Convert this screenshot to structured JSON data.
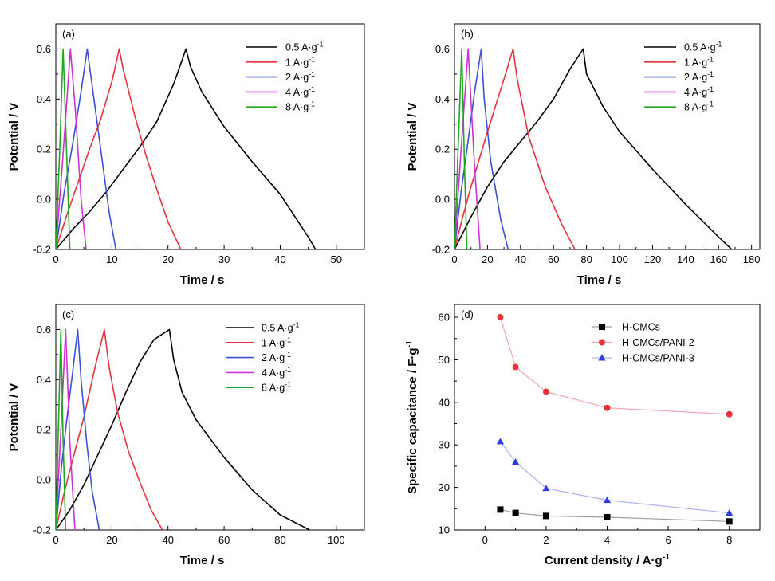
{
  "chart_data": [
    {
      "type": "line",
      "panel_label": "(a)",
      "xlabel": "Time / s",
      "ylabel": "Potential / V",
      "xlim": [
        0,
        55
      ],
      "ylim": [
        -0.2,
        0.7
      ],
      "x_ticks": [
        "0",
        "10",
        "20",
        "30",
        "40",
        "50"
      ],
      "y_ticks": [
        "-0.2",
        "0.0",
        "0.2",
        "0.4",
        "0.6"
      ],
      "legend": [
        "0.5 A·g⁻¹",
        "1 A·g⁻¹",
        "2 A·g⁻¹",
        "4 A·g⁻¹",
        "8 A·g⁻¹"
      ],
      "legend_position": "top-right",
      "series": [
        {
          "name": "0.5 A·g⁻¹",
          "color": "#000000",
          "x": [
            0,
            3,
            6,
            9,
            12,
            15,
            18,
            21,
            23.2,
            24,
            26,
            30,
            35,
            40,
            45,
            46.3
          ],
          "y": [
            -0.2,
            -0.12,
            -0.05,
            0.03,
            0.12,
            0.21,
            0.31,
            0.46,
            0.6,
            0.53,
            0.43,
            0.29,
            0.15,
            0.02,
            -0.15,
            -0.2
          ]
        },
        {
          "name": "1 A·g⁻¹",
          "color": "#e8323c",
          "x": [
            0,
            2,
            4,
            6,
            8,
            10,
            11.3,
            12,
            14,
            16,
            18,
            20,
            22.3
          ],
          "y": [
            -0.2,
            -0.06,
            0.07,
            0.2,
            0.32,
            0.47,
            0.6,
            0.52,
            0.34,
            0.18,
            0.04,
            -0.09,
            -0.2
          ]
        },
        {
          "name": "2 A·g⁻¹",
          "color": "#3c4fd8",
          "x": [
            0,
            1.5,
            3,
            4.5,
            5.6,
            6.5,
            8,
            9.5,
            10.7
          ],
          "y": [
            -0.2,
            0.03,
            0.22,
            0.43,
            0.6,
            0.45,
            0.2,
            -0.05,
            -0.2
          ]
        },
        {
          "name": "4 A·g⁻¹",
          "color": "#d030d8",
          "x": [
            0,
            1.2,
            2.6,
            3.5,
            4.5,
            5.4
          ],
          "y": [
            -0.2,
            0.15,
            0.6,
            0.35,
            0.0,
            -0.2
          ]
        },
        {
          "name": "8 A·g⁻¹",
          "color": "#22a51f",
          "x": [
            0,
            0.7,
            1.3,
            1.9,
            2.5
          ],
          "y": [
            -0.2,
            0.2,
            0.6,
            0.2,
            -0.2
          ]
        }
      ]
    },
    {
      "type": "line",
      "panel_label": "(b)",
      "xlabel": "Time / s",
      "ylabel": "Potential / V",
      "xlim": [
        0,
        185
      ],
      "ylim": [
        -0.2,
        0.7
      ],
      "x_ticks": [
        "0",
        "20",
        "40",
        "60",
        "80",
        "100",
        "120",
        "140",
        "160",
        "180"
      ],
      "y_ticks": [
        "-0.2",
        "0.0",
        "0.2",
        "0.4",
        "0.6"
      ],
      "legend": [
        "0.5 A·g⁻¹",
        "1 A·g⁻¹",
        "2 A·g⁻¹",
        "4 A·g⁻¹",
        "8 A·g⁻¹"
      ],
      "legend_position": "top-right",
      "series": [
        {
          "name": "0.5 A·g⁻¹",
          "color": "#000000",
          "x": [
            0,
            10,
            20,
            30,
            40,
            50,
            60,
            70,
            78,
            80,
            90,
            100,
            120,
            140,
            160,
            168
          ],
          "y": [
            -0.2,
            -0.07,
            0.05,
            0.15,
            0.23,
            0.31,
            0.4,
            0.52,
            0.6,
            0.5,
            0.37,
            0.27,
            0.12,
            -0.02,
            -0.15,
            -0.2
          ]
        },
        {
          "name": "1 A·g⁻¹",
          "color": "#e8323c",
          "x": [
            0,
            5,
            10,
            20,
            30,
            35.5,
            38,
            45,
            55,
            65,
            73
          ],
          "y": [
            -0.2,
            -0.07,
            0.05,
            0.27,
            0.48,
            0.6,
            0.48,
            0.25,
            0.05,
            -0.1,
            -0.2
          ]
        },
        {
          "name": "2 A·g⁻¹",
          "color": "#3c4fd8",
          "x": [
            0,
            4,
            8,
            12,
            16.2,
            18,
            22,
            28,
            32.5
          ],
          "y": [
            -0.2,
            0.03,
            0.22,
            0.42,
            0.6,
            0.4,
            0.15,
            -0.08,
            -0.2
          ]
        },
        {
          "name": "4 A·g⁻¹",
          "color": "#d030d8",
          "x": [
            0,
            4,
            8.3,
            12,
            15.5
          ],
          "y": [
            -0.2,
            0.2,
            0.6,
            0.15,
            -0.2
          ]
        },
        {
          "name": "8 A·g⁻¹",
          "color": "#22a51f",
          "x": [
            0,
            2.2,
            4.4,
            6,
            7.5
          ],
          "y": [
            -0.2,
            0.2,
            0.6,
            0.15,
            -0.2
          ]
        }
      ]
    },
    {
      "type": "line",
      "panel_label": "(c)",
      "xlabel": "Time / s",
      "ylabel": "Potential / V",
      "xlim": [
        0,
        110
      ],
      "ylim": [
        -0.2,
        0.7
      ],
      "x_ticks": [
        "0",
        "20",
        "40",
        "60",
        "80",
        "100"
      ],
      "y_ticks": [
        "-0.2",
        "0.0",
        "0.2",
        "0.4",
        "0.6"
      ],
      "legend": [
        "0.5 A·g⁻¹",
        "1 A·g⁻¹",
        "2 A·g⁻¹",
        "4 A·g⁻¹",
        "8 A·g⁻¹"
      ],
      "legend_position": "top-right",
      "series": [
        {
          "name": "0.5 A·g⁻¹",
          "color": "#000000",
          "x": [
            0,
            5,
            10,
            15,
            20,
            25,
            30,
            35,
            40.5,
            42,
            45,
            50,
            60,
            70,
            80,
            90.5
          ],
          "y": [
            -0.2,
            -0.12,
            -0.02,
            0.1,
            0.22,
            0.35,
            0.47,
            0.56,
            0.6,
            0.48,
            0.35,
            0.24,
            0.09,
            -0.04,
            -0.14,
            -0.2
          ]
        },
        {
          "name": "1 A·g⁻¹",
          "color": "#e8323c",
          "x": [
            0,
            3,
            6,
            10,
            14,
            17.3,
            19,
            22,
            26,
            30,
            34,
            38
          ],
          "y": [
            -0.2,
            -0.05,
            0.08,
            0.25,
            0.45,
            0.6,
            0.45,
            0.27,
            0.11,
            -0.01,
            -0.12,
            -0.2
          ]
        },
        {
          "name": "2 A·g⁻¹",
          "color": "#3c4fd8",
          "x": [
            0,
            2,
            4,
            6,
            7.8,
            9,
            11,
            13,
            15.5
          ],
          "y": [
            -0.2,
            0.05,
            0.25,
            0.43,
            0.6,
            0.4,
            0.15,
            -0.05,
            -0.2
          ]
        },
        {
          "name": "4 A·g⁻¹",
          "color": "#d030d8",
          "x": [
            0,
            1.8,
            3.5,
            5,
            6.8
          ],
          "y": [
            -0.2,
            0.2,
            0.6,
            0.15,
            -0.2
          ]
        },
        {
          "name": "8 A·g⁻¹",
          "color": "#22a51f",
          "x": [
            0,
            0.9,
            1.8,
            2.6,
            3.5
          ],
          "y": [
            -0.2,
            0.2,
            0.6,
            0.15,
            -0.2
          ]
        }
      ]
    },
    {
      "type": "line",
      "panel_label": "(d)",
      "xlabel": "Current density / A·g⁻¹",
      "ylabel": "Specific capacitance / F·g⁻¹",
      "xlim": [
        -1,
        9
      ],
      "ylim": [
        10,
        63
      ],
      "x_ticks": [
        "0",
        "2",
        "4",
        "6",
        "8"
      ],
      "y_ticks": [
        "10",
        "20",
        "30",
        "40",
        "50",
        "60"
      ],
      "legend": [
        "H-CMCs",
        "H-CMCs/PANI-2",
        "H-CMCs/PANI-3"
      ],
      "legend_position": "top-right",
      "series": [
        {
          "name": "H-CMCs",
          "color": "#000000",
          "line_color": "#9aa2a6",
          "marker": "square",
          "x": [
            0.5,
            1,
            2,
            4,
            8
          ],
          "y": [
            14.8,
            14.0,
            13.3,
            13.0,
            12.0
          ]
        },
        {
          "name": "H-CMCs/PANI-2",
          "color": "#e8323c",
          "line_color": "#f2a7b3",
          "marker": "circle",
          "x": [
            0.5,
            1,
            2,
            4,
            8
          ],
          "y": [
            60.0,
            48.3,
            42.5,
            38.7,
            37.2
          ]
        },
        {
          "name": "H-CMCs/PANI-3",
          "color": "#2d3ae6",
          "line_color": "#a9b2f0",
          "marker": "triangle",
          "x": [
            0.5,
            1,
            2,
            4,
            8
          ],
          "y": [
            30.8,
            26.0,
            19.8,
            17.0,
            14.0
          ]
        }
      ]
    }
  ]
}
